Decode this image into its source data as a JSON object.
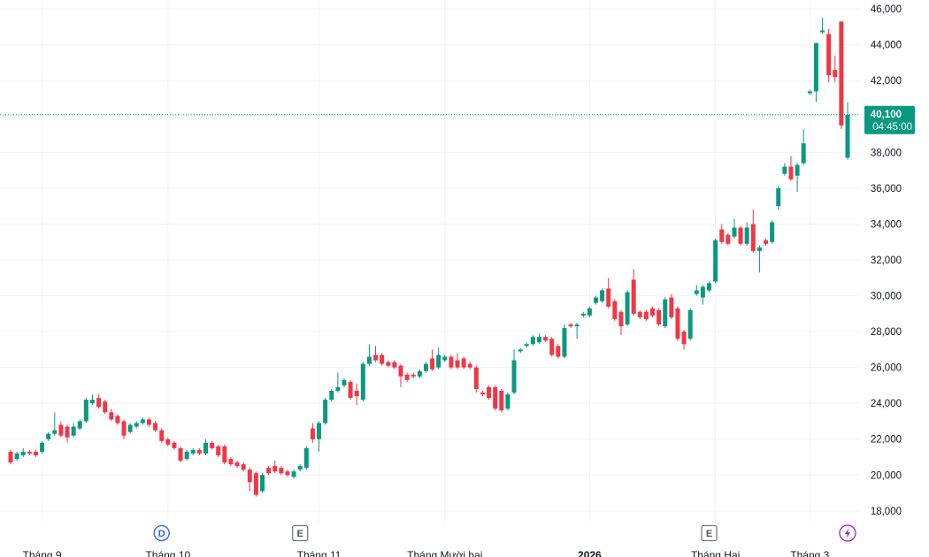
{
  "chart_data": {
    "type": "candlestick",
    "up_color": "#089981",
    "down_color": "#f23645",
    "grid": true,
    "ylim": [
      17400,
      46500
    ],
    "yticks": [
      {
        "value": 18000,
        "label": "18,000"
      },
      {
        "value": 20000,
        "label": "20,000"
      },
      {
        "value": 22000,
        "label": "22,000"
      },
      {
        "value": 24000,
        "label": "24,000"
      },
      {
        "value": 26000,
        "label": "26,000"
      },
      {
        "value": 28000,
        "label": "28,000"
      },
      {
        "value": 30000,
        "label": "30,000"
      },
      {
        "value": 32000,
        "label": "32,000"
      },
      {
        "value": 34000,
        "label": "34,000"
      },
      {
        "value": 36000,
        "label": "36,000"
      },
      {
        "value": 38000,
        "label": "38,000"
      },
      {
        "value": 40000,
        "label": "40,000"
      },
      {
        "value": 42000,
        "label": "42,000"
      },
      {
        "value": 44000,
        "label": "44,000"
      },
      {
        "value": 46000,
        "label": "46,000"
      }
    ],
    "x_labels": [
      {
        "index": 5,
        "label": "Tháng 9"
      },
      {
        "index": 25,
        "label": "Tháng 10"
      },
      {
        "index": 49,
        "label": "Tháng 11"
      },
      {
        "index": 69,
        "label": "Tháng Mười hai"
      },
      {
        "index": 92,
        "label": "2026"
      },
      {
        "index": 112,
        "label": "Tháng Hai"
      },
      {
        "index": 127,
        "label": "Tháng 3"
      }
    ],
    "events": [
      {
        "index": 24,
        "label": "D"
      },
      {
        "index": 46,
        "label": "E"
      },
      {
        "index": 111,
        "label": "E"
      }
    ],
    "last_price": {
      "value": 40100,
      "label": "40,100",
      "countdown": "04:45:00"
    },
    "open": [
      21300,
      20900,
      21100,
      21300,
      21300,
      21300,
      22000,
      22300,
      22800,
      22700,
      22200,
      22600,
      23000,
      24000,
      24300,
      24100,
      23500,
      23300,
      23000,
      22400,
      22700,
      22900,
      23100,
      22900,
      22500,
      22000,
      21800,
      21500,
      20900,
      21200,
      21400,
      21200,
      21800,
      21600,
      21600,
      20900,
      20700,
      20600,
      20300,
      20100,
      19100,
      20400,
      20500,
      20400,
      20200,
      19900,
      20300,
      20400,
      22600,
      22000,
      22900,
      24200,
      24700,
      25000,
      25200,
      24700,
      24200,
      26200,
      26700,
      26700,
      26300,
      26300,
      26100,
      25600,
      25600,
      25500,
      25800,
      26500,
      26000,
      26400,
      26600,
      26400,
      26500,
      26200,
      26000,
      24600,
      24900,
      24900,
      24700,
      23700,
      24600,
      26900,
      27200,
      27300,
      27400,
      27700,
      27600,
      27200,
      26600,
      28400,
      28300,
      28900,
      28900,
      29600,
      29700,
      30400,
      29700,
      29100,
      28400,
      30900,
      29100,
      29100,
      29300,
      29200,
      28300,
      29900,
      29300,
      28000,
      27600,
      30100,
      29900,
      30300,
      30800,
      33700,
      33400,
      33300,
      33800,
      32900,
      34000,
      32500,
      33100,
      33000,
      35000,
      36800,
      37200,
      36700,
      37400,
      41300,
      41400,
      44700,
      44600,
      42600,
      45300,
      37700
    ],
    "high": [
      21400,
      21300,
      21500,
      21400,
      21400,
      21900,
      22400,
      23500,
      23000,
      22800,
      22900,
      23100,
      24300,
      24500,
      24500,
      24200,
      23700,
      23400,
      23100,
      22900,
      23000,
      23200,
      23200,
      23000,
      22600,
      22100,
      21900,
      21600,
      21400,
      21500,
      21500,
      22000,
      21900,
      21700,
      21700,
      21000,
      20800,
      20700,
      20400,
      20200,
      20100,
      20500,
      20800,
      20500,
      20300,
      20300,
      20600,
      21600,
      22900,
      23000,
      24300,
      24800,
      25700,
      25400,
      25300,
      25100,
      26300,
      27300,
      27200,
      26800,
      26400,
      26400,
      26200,
      25700,
      25700,
      25900,
      26300,
      27000,
      27100,
      26700,
      26700,
      26800,
      26600,
      26300,
      26100,
      24700,
      25000,
      25000,
      24800,
      24600,
      27000,
      27100,
      27400,
      27800,
      27900,
      27800,
      27700,
      27300,
      28400,
      28500,
      28500,
      29100,
      29400,
      30000,
      30400,
      31000,
      29800,
      29200,
      30300,
      31500,
      29200,
      29200,
      29400,
      29300,
      29900,
      30100,
      29400,
      28100,
      29300,
      30600,
      30600,
      30800,
      33200,
      34000,
      33500,
      34300,
      33900,
      34100,
      34800,
      32800,
      33200,
      34200,
      36100,
      37400,
      37800,
      37400,
      39300,
      41500,
      44100,
      45500,
      44900,
      43400,
      45300,
      40800
    ],
    "low": [
      20600,
      20800,
      21000,
      21100,
      21000,
      21200,
      21900,
      22200,
      22100,
      21800,
      22100,
      22500,
      22900,
      23900,
      23700,
      23400,
      23000,
      22800,
      22000,
      22300,
      22600,
      22800,
      22700,
      22400,
      21800,
      21600,
      21400,
      20700,
      20800,
      21100,
      21100,
      21100,
      21400,
      21000,
      20600,
      20500,
      20400,
      20200,
      19100,
      18800,
      19000,
      20000,
      20100,
      20000,
      19900,
      19800,
      20200,
      20300,
      21800,
      21300,
      22800,
      24100,
      24600,
      24900,
      24200,
      23900,
      24100,
      26100,
      26300,
      26100,
      26000,
      25900,
      24900,
      25200,
      25400,
      25400,
      25700,
      25800,
      25900,
      26300,
      25900,
      25900,
      25900,
      25900,
      24600,
      24400,
      24200,
      23600,
      23500,
      23600,
      24500,
      26800,
      27100,
      27200,
      27300,
      27400,
      26600,
      26500,
      26500,
      28200,
      27600,
      28800,
      28800,
      29500,
      29600,
      29300,
      28600,
      27800,
      28300,
      28900,
      28700,
      28600,
      28800,
      28300,
      28200,
      28700,
      27500,
      27000,
      27500,
      30000,
      29500,
      30200,
      30700,
      32900,
      32800,
      33200,
      32800,
      32800,
      32400,
      31300,
      32800,
      32900,
      34800,
      36700,
      36400,
      35800,
      37300,
      41200,
      40800,
      44600,
      41900,
      41900,
      39300,
      37600
    ],
    "close": [
      20700,
      21200,
      21300,
      21200,
      21100,
      21800,
      22300,
      22500,
      22200,
      22100,
      22700,
      23000,
      24200,
      24200,
      23800,
      23500,
      23100,
      22900,
      22200,
      22800,
      22900,
      23100,
      22800,
      22500,
      21900,
      21700,
      21500,
      20800,
      21300,
      21400,
      21200,
      21800,
      21500,
      21100,
      20700,
      20600,
      20500,
      20300,
      19600,
      18900,
      20000,
      20100,
      20200,
      20100,
      20000,
      20200,
      20500,
      21500,
      22000,
      22900,
      24200,
      24700,
      24900,
      25300,
      24300,
      24400,
      26200,
      26600,
      26400,
      26200,
      26100,
      26000,
      25500,
      25300,
      25500,
      25800,
      26200,
      25900,
      26700,
      26600,
      26000,
      26000,
      26000,
      26000,
      24800,
      24500,
      24300,
      23700,
      23600,
      24500,
      26400,
      27000,
      27300,
      27700,
      27700,
      27500,
      26700,
      26600,
      28200,
      28300,
      28400,
      29000,
      29300,
      29900,
      30300,
      29400,
      28700,
      28300,
      30200,
      29000,
      28800,
      28700,
      28900,
      28400,
      29800,
      28800,
      27600,
      27300,
      29200,
      30300,
      30500,
      30700,
      33100,
      33000,
      32900,
      33800,
      32900,
      33800,
      32500,
      32700,
      32900,
      34100,
      36000,
      37200,
      36500,
      37300,
      38500,
      41400,
      44100,
      44800,
      42300,
      42200,
      39500,
      40100
    ]
  }
}
